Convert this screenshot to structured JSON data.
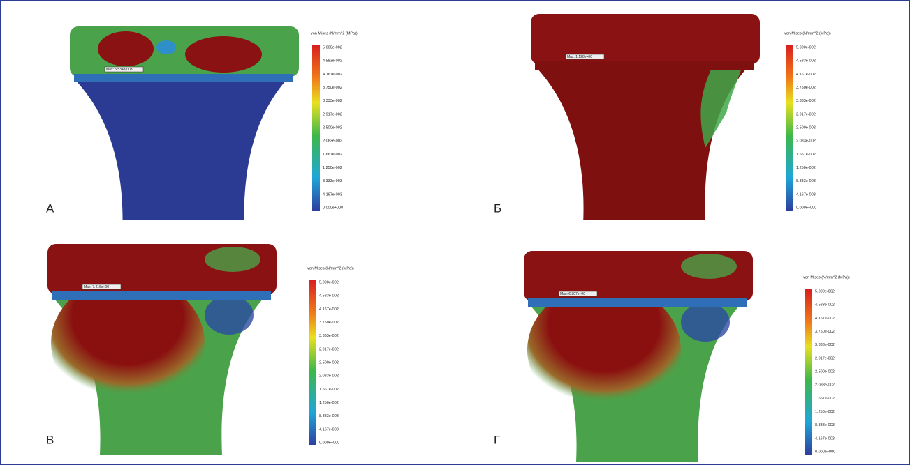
{
  "panels": [
    {
      "label": "А",
      "legend_title": "von Mises (N/mm^2 (MPa))",
      "max_label": "Max: 5.534e-003",
      "ticks": [
        "5.000e-002",
        "4.583e-002",
        "4.167e-002",
        "3.750e-002",
        "3.333e-002",
        "2.917e-002",
        "2.500e-002",
        "2.083e-002",
        "1.667e-002",
        "1.250e-002",
        "8.333e-003",
        "4.167e-003",
        "0.000e+000"
      ]
    },
    {
      "label": "Б",
      "legend_title": "von Mises (N/mm^2 (MPa))",
      "max_label": "Max: 1.128e+00",
      "ticks": [
        "5.000e-002",
        "4.583e-002",
        "4.167e-002",
        "3.750e-002",
        "3.333e-002",
        "2.917e-002",
        "2.500e-002",
        "2.083e-002",
        "1.667e-002",
        "1.250e-002",
        "8.333e-003",
        "4.167e-003",
        "0.000e+000"
      ]
    },
    {
      "label": "В",
      "legend_title": "von Mises (N/mm^2 (MPa))",
      "max_label": "Max: 7.416e+00",
      "ticks": [
        "5.000e-002",
        "4.583e-002",
        "4.167e-002",
        "3.750e-002",
        "3.333e-002",
        "2.917e-002",
        "2.500e-002",
        "2.083e-002",
        "1.667e-002",
        "1.250e-002",
        "8.333e-003",
        "4.167e-003",
        "0.000e+000"
      ]
    },
    {
      "label": "Г",
      "legend_title": "von Mises (N/mm^2 (MPa))",
      "max_label": "Max: 6.307e+00",
      "ticks": [
        "5.000e-002",
        "4.583e-002",
        "4.167e-002",
        "3.750e-002",
        "3.333e-002",
        "2.917e-002",
        "2.500e-002",
        "2.083e-002",
        "1.667e-002",
        "1.250e-002",
        "8.333e-003",
        "4.167e-003",
        "0.000e+000"
      ]
    }
  ]
}
